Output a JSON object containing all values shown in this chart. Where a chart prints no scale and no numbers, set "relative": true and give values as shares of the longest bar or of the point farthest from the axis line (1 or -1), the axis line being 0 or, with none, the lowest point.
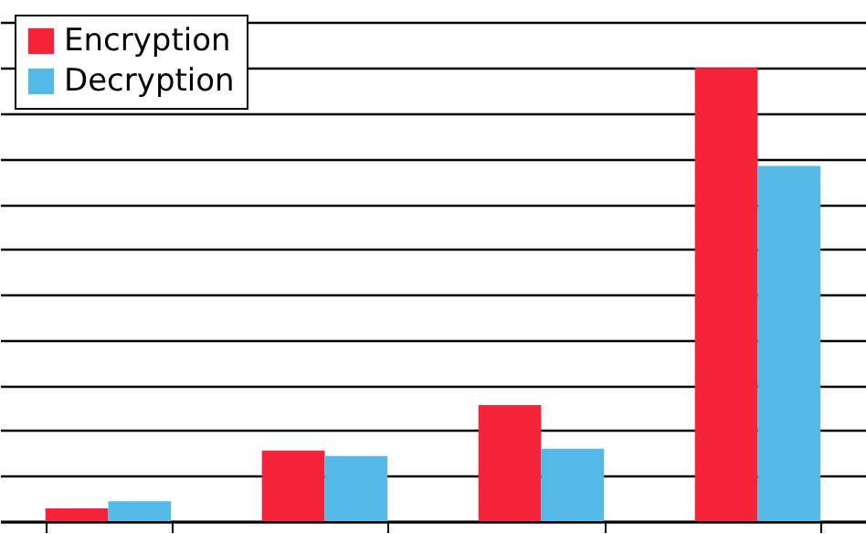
{
  "chart_data": {
    "type": "bar",
    "relative": true,
    "categories": [
      null,
      null,
      null,
      null
    ],
    "series": [
      {
        "name": "Encryption",
        "color": "#f52438",
        "values": [
          0.028,
          0.156,
          0.256,
          1
        ]
      },
      {
        "name": "Decryption",
        "color": "#55b9e8",
        "values": [
          0.044,
          0.144,
          0.16,
          0.784
        ]
      }
    ],
    "grid": "y",
    "legend": "top left"
  }
}
